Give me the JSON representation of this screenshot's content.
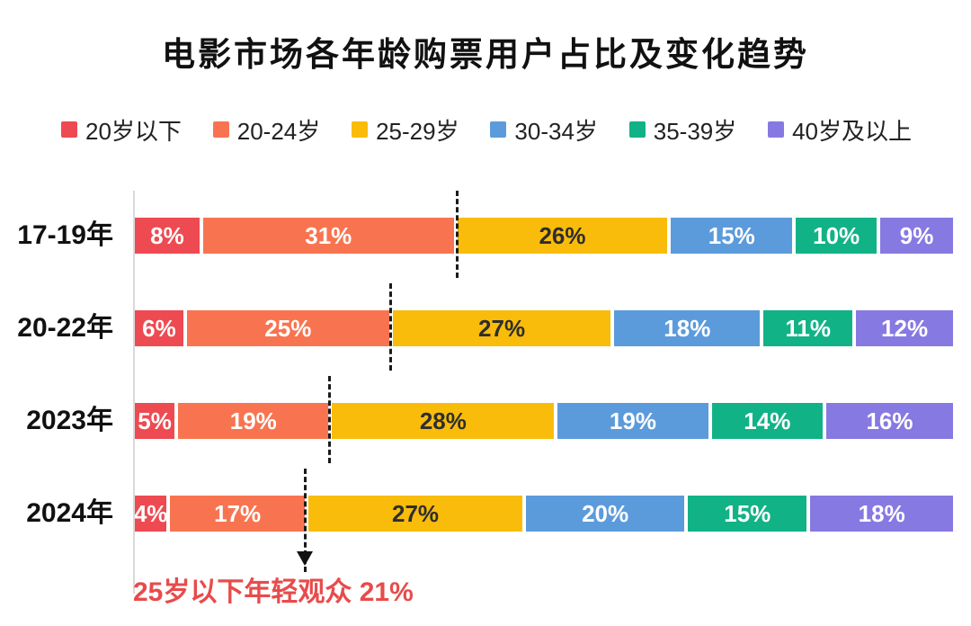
{
  "title": "电影市场各年龄购票用户占比及变化趋势",
  "chart_data": {
    "type": "bar",
    "orientation": "horizontal-stacked",
    "unit": "%",
    "categories": [
      "17-19年",
      "20-22年",
      "2023年",
      "2024年"
    ],
    "series": [
      {
        "name": "20岁以下",
        "color": "#EE4A52",
        "label_color": "#ffffff",
        "values": [
          8,
          6,
          5,
          4
        ]
      },
      {
        "name": "20-24岁",
        "color": "#F87450",
        "label_color": "#ffffff",
        "values": [
          31,
          25,
          19,
          17
        ]
      },
      {
        "name": "25-29岁",
        "color": "#F9BC0B",
        "label_color": "#2e2e2e",
        "values": [
          26,
          27,
          28,
          27
        ]
      },
      {
        "name": "30-34岁",
        "color": "#5C9BDB",
        "label_color": "#ffffff",
        "values": [
          15,
          18,
          19,
          20
        ]
      },
      {
        "name": "35-39岁",
        "color": "#12B287",
        "label_color": "#ffffff",
        "values": [
          10,
          11,
          14,
          15
        ]
      },
      {
        "name": "40岁及以上",
        "color": "#8779E2",
        "label_color": "#ffffff",
        "values": [
          9,
          12,
          16,
          18
        ]
      }
    ],
    "legend_position": "top",
    "grid": false,
    "marker_lines": {
      "description": "dashed boundary after 20-24岁 segment (under-25 share)",
      "after_series_index": 1,
      "cumulative_percent": [
        39,
        31,
        24,
        21
      ],
      "color": "#1a1a1a"
    },
    "annotation": {
      "text": "25岁以下年轻观众 21%",
      "color": "#E84B4B",
      "arrow": "down"
    }
  },
  "colors": {
    "background": "#ffffff",
    "title_text": "#111111",
    "axis_line": "#d9d9d9",
    "legend_text": "#222222"
  }
}
